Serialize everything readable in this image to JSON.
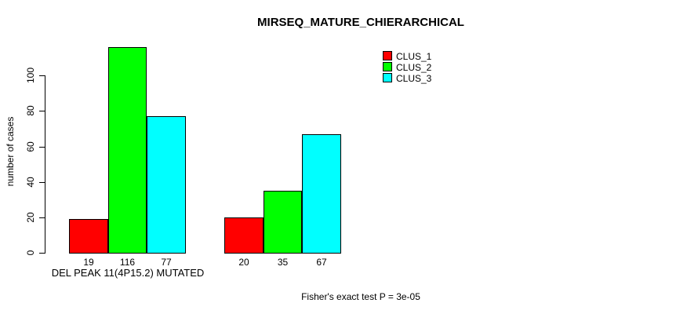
{
  "chart_data": {
    "type": "bar",
    "title": "MIRSEQ_MATURE_CHIERARCHICAL",
    "ylabel": "number of cases",
    "footer": "Fisher's exact test P = 3e-05",
    "yticks": [
      0,
      20,
      40,
      60,
      80,
      100
    ],
    "axis_range": [
      0,
      100
    ],
    "ylim": [
      0,
      116
    ],
    "grid": false,
    "legend_position": "top-right",
    "bar_colors": {
      "red": "#ff0000",
      "green": "#00ff00",
      "cyan": "#00ffff"
    },
    "series": [
      {
        "name": "CLUS_1",
        "color": "#ff0000"
      },
      {
        "name": "CLUS_2",
        "color": "#00ff00"
      },
      {
        "name": "CLUS_3",
        "color": "#00ffff"
      }
    ],
    "groups": [
      {
        "label": "DEL PEAK 11(4P15.2) MUTATED",
        "values": [
          19,
          116,
          77
        ]
      },
      {
        "label": "",
        "values": [
          20,
          35,
          67
        ]
      }
    ]
  }
}
